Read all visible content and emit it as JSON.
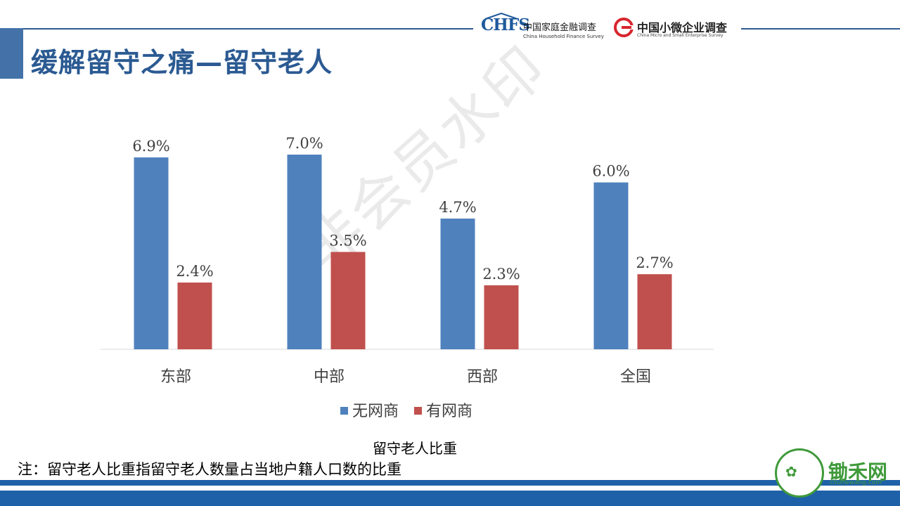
{
  "slide": {
    "title": "缓解留守之痛—留守老人",
    "watermark": "非会员水印",
    "caption": "留守老人比重",
    "note": "注：留守老人比重指留守老人数量占当地户籍人口数的比重"
  },
  "logos": {
    "chfs": {
      "mark": "CHFS",
      "cn": "中国家庭金融调查",
      "en": "China Household Finance Survey"
    },
    "cmses": {
      "cn": "中国小微企业调查",
      "en": "China Micro and Small Enterprise Survey"
    },
    "org": {
      "name": "锄禾网",
      "url": "chuhewang.com"
    }
  },
  "colors": {
    "accent": "#2b5a92",
    "series1": "#4f81bd",
    "series2": "#c0504d",
    "footer": "#1f61a8"
  },
  "chart_data": {
    "type": "bar",
    "categories": [
      "东部",
      "中部",
      "西部",
      "全国"
    ],
    "series": [
      {
        "name": "无网商",
        "values": [
          6.9,
          7.0,
          4.7,
          6.0
        ],
        "labels": [
          "6.9%",
          "7.0%",
          "4.7%",
          "6.0%"
        ],
        "color": "#4f81bd"
      },
      {
        "name": "有网商",
        "values": [
          2.4,
          3.5,
          2.3,
          2.7
        ],
        "labels": [
          "2.4%",
          "3.5%",
          "2.3%",
          "2.7%"
        ],
        "color": "#c0504d"
      }
    ],
    "ylim": [
      0,
      7.0
    ],
    "unit": "%",
    "legend": "bottom",
    "grid": false
  }
}
